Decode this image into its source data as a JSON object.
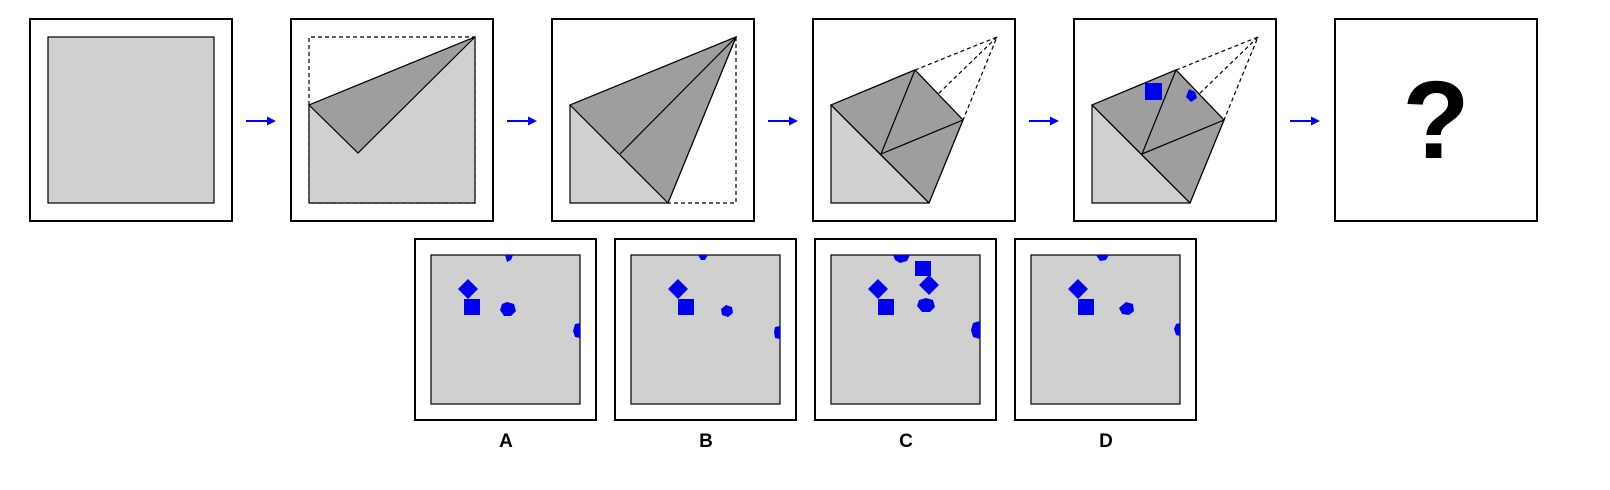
{
  "puzzle": {
    "question_mark": "?",
    "options": [
      {
        "label": "A"
      },
      {
        "label": "B"
      },
      {
        "label": "C"
      },
      {
        "label": "D"
      }
    ]
  },
  "colors": {
    "paper": "#d0d0d0",
    "folded_paper": "#9e9e9e",
    "hole": "#0000ee",
    "arrow": "#0000ff",
    "outline": "#000000"
  },
  "icons": [
    "right-arrow-icon",
    "square-hole-icon",
    "diamond-hole-icon",
    "hexagon-hole-icon"
  ]
}
